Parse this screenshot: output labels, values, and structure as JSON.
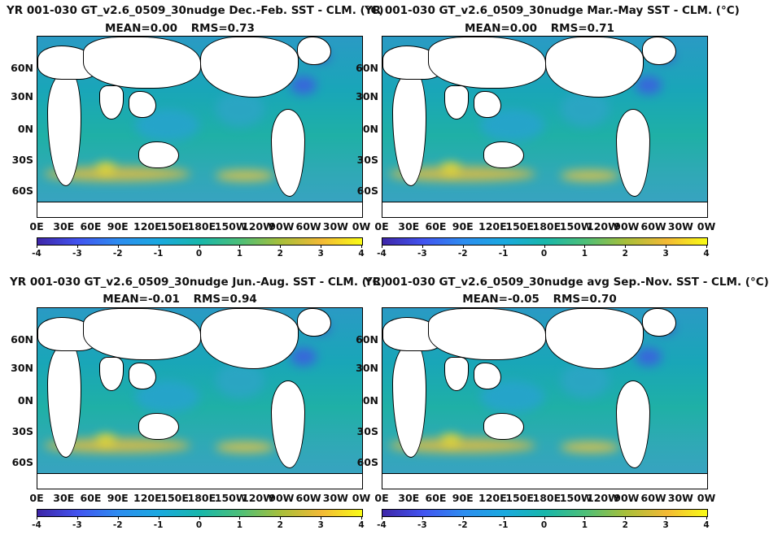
{
  "colorscale": {
    "ticks": [
      "-4",
      "-3",
      "-2",
      "-1",
      "0",
      "1",
      "2",
      "3",
      "4"
    ],
    "colors": [
      "#3e26a8",
      "#4254f0",
      "#2d8df0",
      "#1aa9df",
      "#18b7ab",
      "#4dbf78",
      "#a8bf3a",
      "#f3b935",
      "#f9fb15"
    ]
  },
  "lat_labels": [
    "60N",
    "30N",
    "0N",
    "30S",
    "60S"
  ],
  "lon_labels": [
    "0E",
    "30E",
    "60E",
    "90E",
    "120E",
    "150E",
    "180E",
    "150W",
    "120W",
    "90W",
    "60W",
    "30W",
    "0W"
  ],
  "panels": [
    {
      "title": "YR 001-030 GT_v2.6_0509_30nudge  Dec.-Feb. SST - CLM. (°C)",
      "mean": "MEAN=0.00",
      "rms": "RMS=0.73"
    },
    {
      "title": "YR 001-030 GT_v2.6_0509_30nudge Mar.-May SST - CLM. (°C)",
      "mean": "MEAN=0.00",
      "rms": "RMS=0.71"
    },
    {
      "title": "YR 001-030 GT_v2.6_0509_30nudge Jun.-Aug. SST - CLM. (°C)",
      "mean": "MEAN=-0.01",
      "rms": "RMS=0.94"
    },
    {
      "title": "YR 001-030 GT_v2.6_0509_30nudge avg Sep.-Nov. SST - CLM. (°C)",
      "mean": "MEAN=-0.05",
      "rms": "RMS=0.70"
    }
  ],
  "chart_data": [
    {
      "type": "heatmap",
      "title": "YR 001-030 GT_v2.6_0509_30nudge  Dec.-Feb. SST - CLM. (°C)",
      "mean": 0.0,
      "rms": 0.73,
      "clim": [
        -4,
        4
      ]
    },
    {
      "type": "heatmap",
      "title": "YR 001-030 GT_v2.6_0509_30nudge Mar.-May SST - CLM. (°C)",
      "mean": 0.0,
      "rms": 0.71,
      "clim": [
        -4,
        4
      ]
    },
    {
      "type": "heatmap",
      "title": "YR 001-030 GT_v2.6_0509_30nudge Jun.-Aug. SST - CLM. (°C)",
      "mean": -0.01,
      "rms": 0.94,
      "clim": [
        -4,
        4
      ]
    },
    {
      "type": "heatmap",
      "title": "YR 001-030 GT_v2.6_0509_30nudge avg Sep.-Nov. SST - CLM. (°C)",
      "mean": -0.05,
      "rms": 0.7,
      "clim": [
        -4,
        4
      ]
    }
  ]
}
